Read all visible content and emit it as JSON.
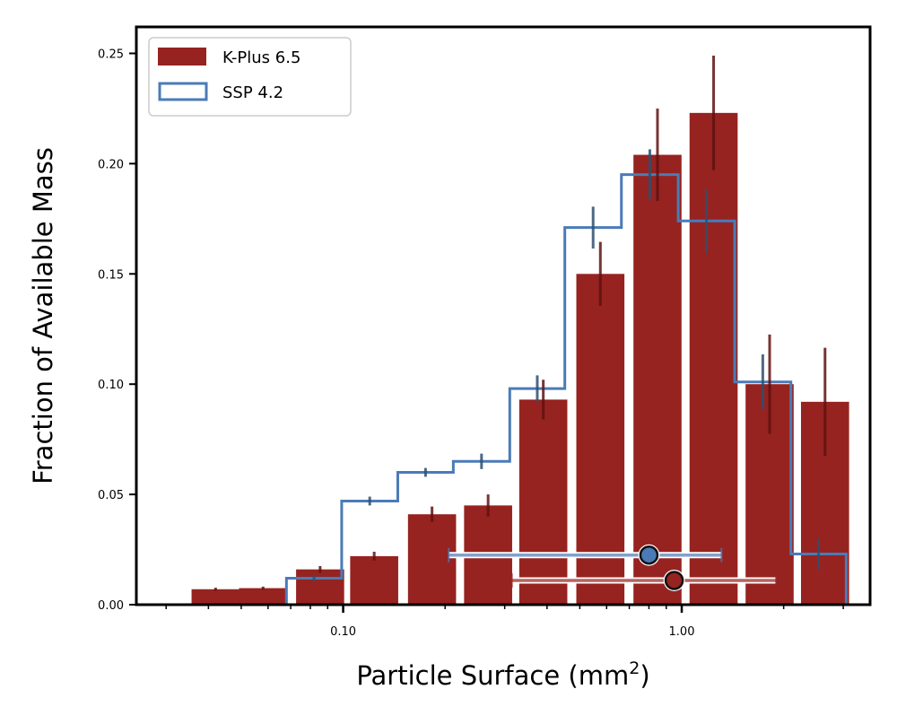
{
  "chart_data": {
    "type": "bar",
    "xscale": "log",
    "xlabel": "Particle Surface (mm",
    "xlabel_sup": "2",
    "xlabel_close": ")",
    "ylabel": "Fraction of Available Mass",
    "xlim": [
      0.0245,
      3.6
    ],
    "ylim": [
      0,
      0.262
    ],
    "yticks": [
      {
        "value": 0.0,
        "label": "0.00"
      },
      {
        "value": 0.05,
        "label": "0.05"
      },
      {
        "value": 0.1,
        "label": "0.10"
      },
      {
        "value": 0.15,
        "label": "0.15"
      },
      {
        "value": 0.2,
        "label": "0.20"
      },
      {
        "value": 0.25,
        "label": "0.25"
      }
    ],
    "xticks_major": [
      {
        "value": 0.1,
        "label": "0.10"
      },
      {
        "value": 1.0,
        "label": "1.00"
      }
    ],
    "xticks_minor": [
      0.03,
      0.04,
      0.05,
      0.06,
      0.07,
      0.08,
      0.09,
      0.2,
      0.3,
      0.4,
      0.5,
      0.6,
      0.7,
      0.8,
      0.9,
      2,
      3
    ],
    "legend": {
      "position": "upper-left",
      "entries": [
        {
          "label": "K-Plus 6.5",
          "style": "filled",
          "series": "kplus"
        },
        {
          "label": "SSP 4.2",
          "style": "outline",
          "series": "ssp"
        }
      ]
    },
    "series": [
      {
        "key": "kplus",
        "name": "K-Plus 6.5",
        "kind": "bar",
        "color": "#962320",
        "err_color": "#5e1210",
        "bars": [
          {
            "x": 0.042,
            "y": 0.007,
            "err": 0.0007
          },
          {
            "x": 0.058,
            "y": 0.0075,
            "err": 0.0007
          },
          {
            "x": 0.0855,
            "y": 0.016,
            "err": 0.0015
          },
          {
            "x": 0.1235,
            "y": 0.022,
            "err": 0.002
          },
          {
            "x": 0.183,
            "y": 0.041,
            "err": 0.0035
          },
          {
            "x": 0.268,
            "y": 0.045,
            "err": 0.005
          },
          {
            "x": 0.39,
            "y": 0.093,
            "err": 0.009
          },
          {
            "x": 0.575,
            "y": 0.15,
            "err": 0.0145
          },
          {
            "x": 0.848,
            "y": 0.204,
            "err": 0.021
          },
          {
            "x": 1.242,
            "y": 0.223,
            "err": 0.026
          },
          {
            "x": 1.818,
            "y": 0.1,
            "err": 0.0225
          },
          {
            "x": 2.65,
            "y": 0.092,
            "err": 0.0245
          }
        ],
        "bar_width_log": 0.142,
        "summary": {
          "center": 0.95,
          "low": 0.315,
          "high": 1.9,
          "y": 0.011
        }
      },
      {
        "key": "ssp",
        "name": "SSP 4.2",
        "kind": "step",
        "color": "#4a7bb7",
        "err_color": "#2f4f70",
        "edges": [
          0.068,
          0.099,
          0.145,
          0.2115,
          0.3105,
          0.4515,
          0.6635,
          0.9765,
          1.4335,
          2.101,
          3.06
        ],
        "values": [
          0.012,
          0.047,
          0.06,
          0.065,
          0.098,
          0.171,
          0.195,
          0.174,
          0.101,
          0.023
        ],
        "errors": [
          0.0015,
          0.002,
          0.002,
          0.0035,
          0.006,
          0.0095,
          0.0115,
          0.0145,
          0.0125,
          0.007
        ],
        "summary": {
          "center": 0.8,
          "low": 0.205,
          "high": 1.31,
          "y": 0.0225
        }
      }
    ]
  }
}
